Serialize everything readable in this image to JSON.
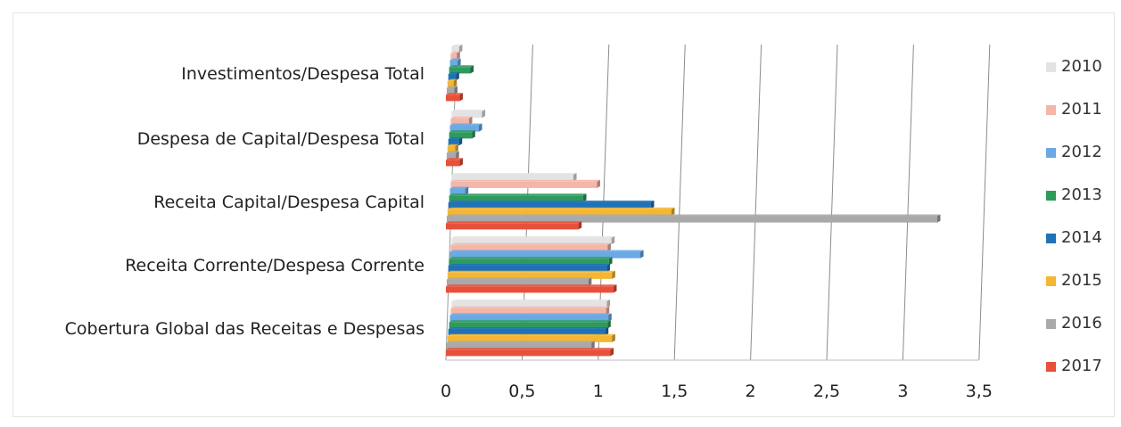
{
  "chart_data": {
    "type": "bar",
    "orientation": "horizontal",
    "title": "",
    "xlabel": "",
    "ylabel": "",
    "xlim": [
      0,
      3.5
    ],
    "x_ticks": [
      "0",
      "0,5",
      "1",
      "1,5",
      "2",
      "2,5",
      "3",
      "3,5"
    ],
    "grid": true,
    "legend_position": "right",
    "categories": [
      "Cobertura Global das Receitas e Despesas",
      "Receita Corrente/Despesa Corrente",
      "Receita Capital/Despesa Capital",
      "Despesa de Capital/Despesa Total",
      "Investimentos/Despesa Total"
    ],
    "series": [
      {
        "name": "2010",
        "color": "#e3e3e3",
        "values": [
          1.02,
          1.05,
          0.8,
          0.2,
          0.05
        ]
      },
      {
        "name": "2011",
        "color": "#f4b6a8",
        "values": [
          1.02,
          1.03,
          0.96,
          0.12,
          0.04
        ]
      },
      {
        "name": "2012",
        "color": "#6aa9e4",
        "values": [
          1.04,
          1.25,
          0.1,
          0.19,
          0.05
        ]
      },
      {
        "name": "2013",
        "color": "#2e9a5c",
        "values": [
          1.04,
          1.05,
          0.88,
          0.15,
          0.14
        ]
      },
      {
        "name": "2014",
        "color": "#1f72b8",
        "values": [
          1.03,
          1.04,
          1.33,
          0.07,
          0.05
        ]
      },
      {
        "name": "2015",
        "color": "#f5b731",
        "values": [
          1.08,
          1.08,
          1.47,
          0.05,
          0.04
        ]
      },
      {
        "name": "2016",
        "color": "#a9a9a9",
        "values": [
          0.95,
          0.93,
          3.22,
          0.06,
          0.05
        ]
      },
      {
        "name": "2017",
        "color": "#e8503a",
        "values": [
          1.08,
          1.1,
          0.87,
          0.09,
          0.09
        ]
      }
    ]
  }
}
